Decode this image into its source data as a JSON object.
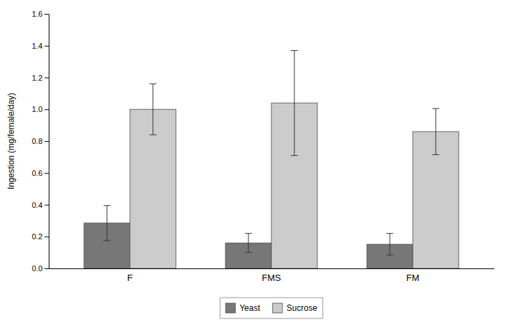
{
  "chart_data": {
    "type": "bar",
    "categories": [
      "F",
      "FMS",
      "FM"
    ],
    "series": [
      {
        "name": "Yeast",
        "color": "#777777",
        "values": [
          0.285,
          0.16,
          0.152
        ],
        "errors": [
          0.11,
          0.06,
          0.068
        ]
      },
      {
        "name": "Sucrose",
        "color": "#cccccc",
        "values": [
          1.0,
          1.04,
          0.86
        ],
        "errors": [
          0.16,
          0.33,
          0.145
        ]
      }
    ],
    "ylabel": "Ingestion (mg/female/day)",
    "ylim": [
      0,
      1.6
    ],
    "yticks": [
      {
        "value": 0.0,
        "label": "0.0"
      },
      0.2,
      0.4,
      0.6,
      0.8,
      {
        "value": 1.0,
        "label": "1.0"
      },
      1.2,
      1.4,
      1.6
    ],
    "grid": false,
    "legend": "bottom"
  }
}
